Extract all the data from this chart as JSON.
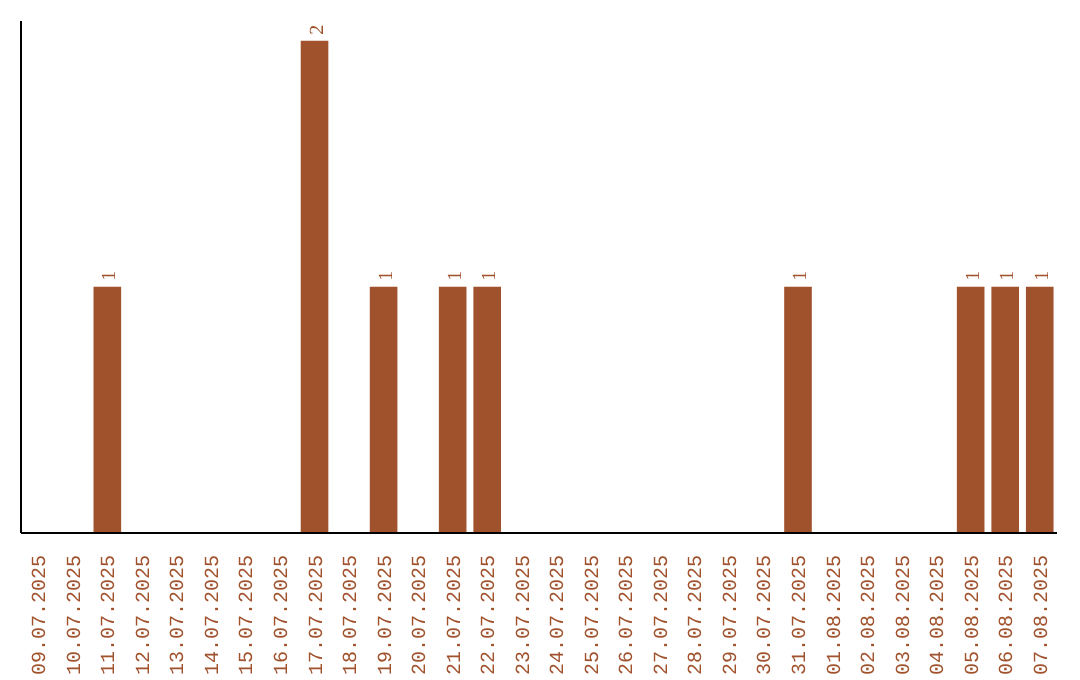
{
  "chart_data": {
    "type": "bar",
    "categories": [
      "09.07.2025",
      "10.07.2025",
      "11.07.2025",
      "12.07.2025",
      "13.07.2025",
      "14.07.2025",
      "15.07.2025",
      "16.07.2025",
      "17.07.2025",
      "18.07.2025",
      "19.07.2025",
      "20.07.2025",
      "21.07.2025",
      "22.07.2025",
      "23.07.2025",
      "24.07.2025",
      "25.07.2025",
      "26.07.2025",
      "27.07.2025",
      "28.07.2025",
      "29.07.2025",
      "30.07.2025",
      "31.07.2025",
      "01.08.2025",
      "02.08.2025",
      "03.08.2025",
      "04.08.2025",
      "05.08.2025",
      "06.08.2025",
      "07.08.2025"
    ],
    "values": [
      0,
      0,
      1,
      0,
      0,
      0,
      0,
      0,
      2,
      0,
      1,
      0,
      1,
      1,
      0,
      0,
      0,
      0,
      0,
      0,
      0,
      0,
      1,
      0,
      0,
      0,
      0,
      1,
      1,
      1
    ],
    "value_labels": [
      null,
      null,
      "1",
      null,
      null,
      null,
      null,
      null,
      "2",
      null,
      "1",
      null,
      "1",
      "1",
      null,
      null,
      null,
      null,
      null,
      null,
      null,
      null,
      "1",
      null,
      null,
      null,
      null,
      "1",
      "1",
      "1"
    ],
    "color": "#a0522d",
    "grid": false
  }
}
